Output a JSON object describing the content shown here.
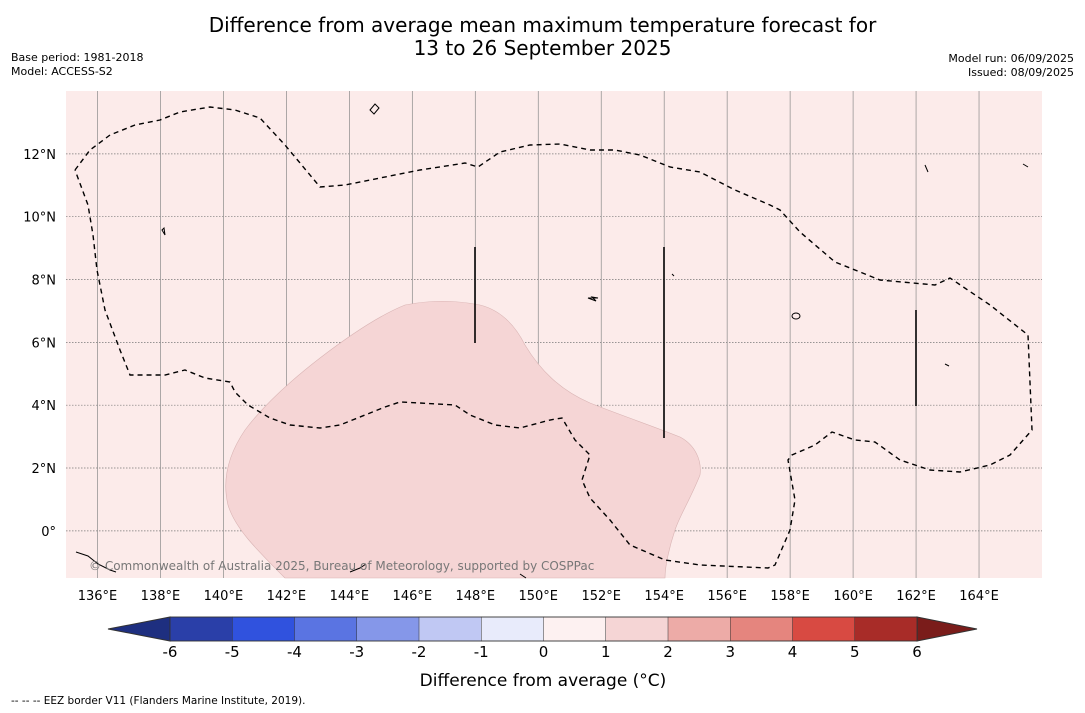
{
  "title_line1": "Difference from average mean maximum temperature forecast for",
  "title_line2": "13 to 26 September 2025",
  "base_period": "Base period: 1981-2018",
  "model": "Model: ACCESS-S2",
  "model_run": "Model run: 06/09/2025",
  "issued": "Issued: 08/09/2025",
  "copyright": "© Commonwealth of Australia 2025, Bureau of Meteorology, supported by COSPPac",
  "footnote": "--  --  -- EEZ border V11 (Flanders Marine Institute, 2019).",
  "colorbar_label": "Difference from average (°C)",
  "map": {
    "lon_range": [
      135,
      166
    ],
    "lat_range": [
      -1.5,
      14
    ],
    "lon_ticks": [
      136,
      138,
      140,
      142,
      144,
      146,
      148,
      150,
      152,
      154,
      156,
      158,
      160,
      162,
      164
    ],
    "lon_labels": [
      "136°E",
      "138°E",
      "140°E",
      "142°E",
      "144°E",
      "146°E",
      "148°E",
      "150°E",
      "152°E",
      "154°E",
      "156°E",
      "158°E",
      "160°E",
      "162°E",
      "164°E"
    ],
    "lat_ticks": [
      0,
      2,
      4,
      6,
      8,
      10,
      12
    ],
    "lat_labels": [
      "0°",
      "2°N",
      "4°N",
      "6°N",
      "8°N",
      "10°N",
      "12°N"
    ],
    "background_class": "0 to 1",
    "background_color": "#fcebea",
    "anomaly_region_class": "1 to 2",
    "anomaly_region_color": "#f5d5d5"
  },
  "colorbar": {
    "ticks": [
      "-6",
      "-5",
      "-4",
      "-3",
      "-2",
      "-1",
      "0",
      "1",
      "2",
      "3",
      "4",
      "5",
      "6"
    ],
    "colors": [
      "#2a3fa8",
      "#3052de",
      "#5a74e2",
      "#8597e9",
      "#c0c8f3",
      "#e8ebfb",
      "#fdf1f1",
      "#f5d5d5",
      "#edaba7",
      "#e5857e",
      "#d84a42",
      "#a82c28"
    ],
    "under_color": "#1e2f80",
    "over_color": "#7a1c1a"
  }
}
